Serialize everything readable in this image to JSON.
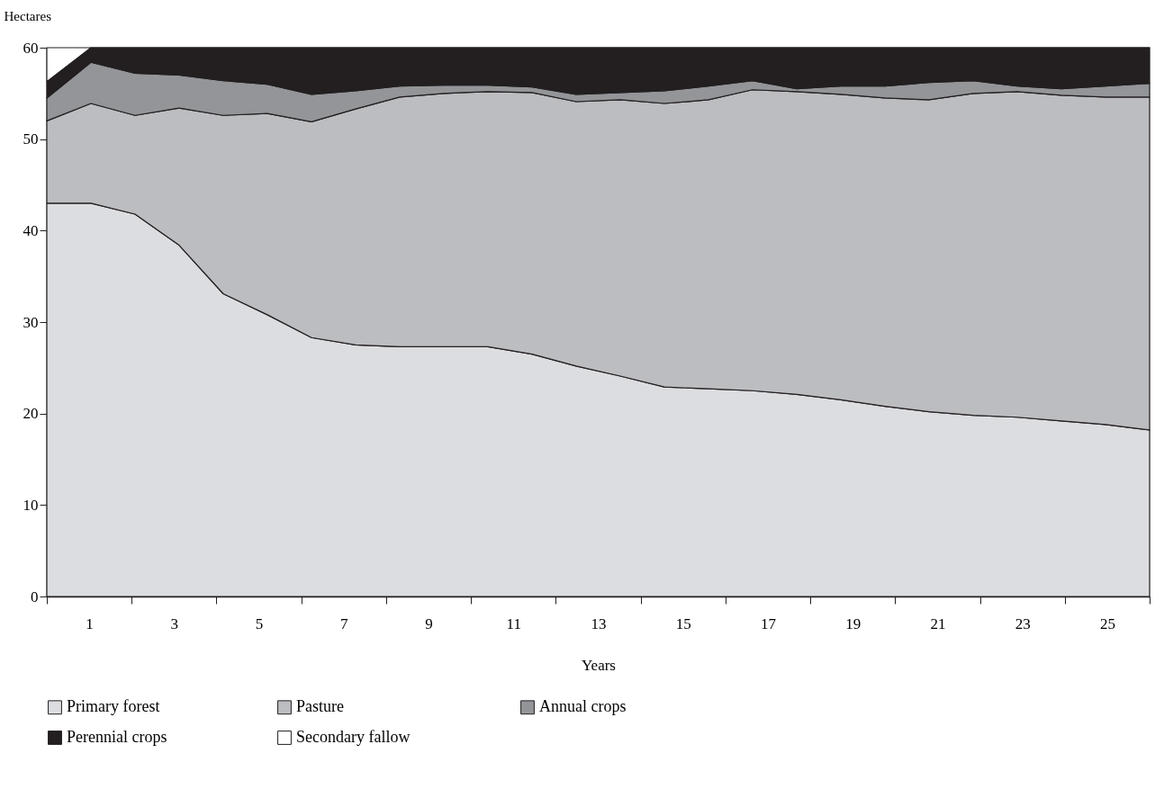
{
  "chart_data": {
    "type": "area",
    "stacked": true,
    "xlabel": "Years",
    "ylabel": "Hectares",
    "x": [
      0,
      1.04,
      2.08,
      3.12,
      4.16,
      5.2,
      6.24,
      7.28,
      8.32,
      9.36,
      10.4,
      11.44,
      12.48,
      13.52,
      14.56,
      15.6,
      16.64,
      17.68,
      18.72,
      19.76,
      20.8,
      21.84,
      22.88,
      23.92,
      24.96,
      26
    ],
    "xlim": [
      0,
      26
    ],
    "xticks": [
      {
        "value": 0,
        "label": null
      },
      1,
      {
        "value": 2,
        "label": null
      },
      3,
      {
        "value": 4,
        "label": null
      },
      5,
      {
        "value": 6,
        "label": null
      },
      7,
      {
        "value": 8,
        "label": null
      },
      9,
      {
        "value": 10,
        "label": null
      },
      11,
      {
        "value": 12,
        "label": null
      },
      13,
      {
        "value": 14,
        "label": null
      },
      15,
      {
        "value": 16,
        "label": null
      },
      17,
      {
        "value": 18,
        "label": null
      },
      19,
      {
        "value": 20,
        "label": null
      },
      21,
      {
        "value": 22,
        "label": null
      },
      23,
      {
        "value": 24,
        "label": null
      },
      25,
      {
        "value": 26,
        "label": null
      }
    ],
    "ylim": [
      0,
      60
    ],
    "yticks": [
      0,
      10,
      20,
      30,
      40,
      50,
      60
    ],
    "legend": "bottom",
    "series": [
      {
        "name": "Primary forest",
        "color": "#dcdde0",
        "values": [
          43.0,
          43.0,
          41.8,
          38.4,
          33.1,
          30.8,
          28.3,
          27.5,
          27.3,
          27.3,
          27.3,
          26.5,
          25.2,
          24.1,
          22.9,
          22.7,
          22.5,
          22.1,
          21.5,
          20.8,
          20.2,
          19.8,
          19.6,
          19.2,
          18.8,
          18.2
        ]
      },
      {
        "name": "Pasture",
        "color": "#bcbdc1",
        "values": [
          9.0,
          10.9,
          10.8,
          15.0,
          19.5,
          22.0,
          23.6,
          25.8,
          27.3,
          27.7,
          27.9,
          28.6,
          28.9,
          30.2,
          31.0,
          31.6,
          32.9,
          33.1,
          33.4,
          33.7,
          34.1,
          35.2,
          35.6,
          35.6,
          35.8,
          36.4
        ]
      },
      {
        "name": "Annual crops",
        "color": "#939598",
        "values": [
          2.5,
          4.5,
          4.6,
          3.6,
          3.8,
          3.2,
          3.0,
          2.0,
          1.2,
          0.9,
          0.7,
          0.6,
          0.8,
          0.8,
          1.4,
          1.5,
          1.0,
          0.3,
          0.9,
          1.3,
          1.9,
          1.4,
          0.6,
          0.7,
          1.2,
          1.5
        ]
      },
      {
        "name": "Perennial crops",
        "color": "#231f20",
        "values": [
          1.8,
          1.6,
          2.8,
          3.0,
          3.6,
          4.0,
          5.1,
          4.7,
          4.2,
          4.1,
          4.1,
          4.3,
          5.1,
          4.9,
          4.7,
          4.2,
          3.6,
          4.5,
          4.2,
          4.2,
          3.8,
          3.6,
          4.2,
          4.5,
          4.2,
          3.9
        ]
      },
      {
        "name": "Secondary fallow",
        "color": "#ffffff",
        "values": [
          3.7,
          0,
          0,
          0,
          0,
          0,
          0,
          0,
          0,
          0,
          0,
          0,
          0,
          0,
          0,
          0,
          0,
          0,
          0,
          0,
          0,
          0,
          0,
          0,
          0,
          0
        ]
      }
    ]
  }
}
